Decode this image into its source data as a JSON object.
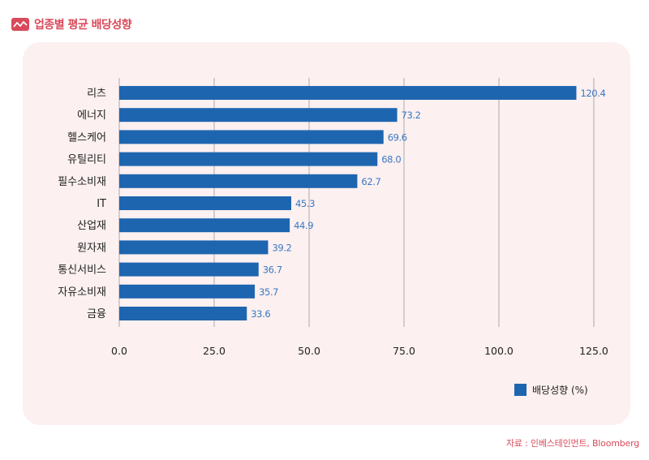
{
  "header": {
    "title": "업종별 평균 배당성향",
    "icon": "chart-icon"
  },
  "source": "자료 : 인베스테인먼트, Bloomberg",
  "colors": {
    "accent": "#d94a5a",
    "panel_bg": "#fcf0f0",
    "bar": "#1e65b0",
    "value_label": "#3a78c3",
    "grid": "#b8b8b8",
    "text": "#222222",
    "source_text": "#d94a5a"
  },
  "chart_data": {
    "type": "bar",
    "orientation": "horizontal",
    "title": "",
    "xlabel": "",
    "ylabel": "",
    "categories": [
      "리츠",
      "에너지",
      "헬스케어",
      "유틸리티",
      "필수소비재",
      "IT",
      "산업재",
      "원자재",
      "통신서비스",
      "자유소비재",
      "금융"
    ],
    "series": [
      {
        "name": "배당성향 (%)",
        "values": [
          120.4,
          73.2,
          69.6,
          68.0,
          62.7,
          45.3,
          44.9,
          39.2,
          36.7,
          35.7,
          33.6
        ],
        "labels": [
          "120.4",
          "73.2",
          "69.6",
          "68.0",
          "62.7",
          "45.3",
          "44.9",
          "39.2",
          "36.7",
          "35.7",
          "33.6"
        ]
      }
    ],
    "xlim": [
      0,
      125
    ],
    "ticks": [
      0,
      25,
      50,
      75,
      100,
      125
    ],
    "tick_labels": [
      "0.0",
      "25.0",
      "50.0",
      "75.0",
      "100.0",
      "125.0"
    ],
    "grid": "vertical",
    "legend": {
      "position": "bottom-right",
      "label": "배당성향 (%)"
    }
  }
}
